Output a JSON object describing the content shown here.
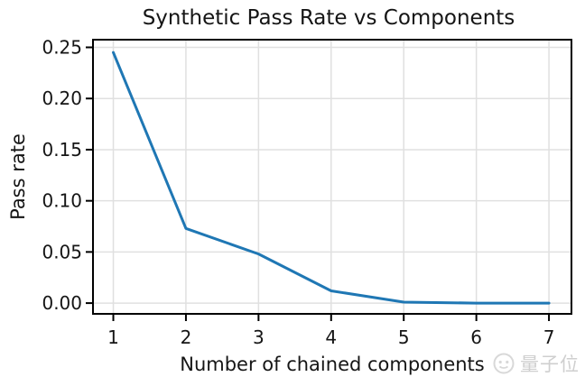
{
  "chart_data": {
    "type": "line",
    "title": "Synthetic Pass Rate vs Components",
    "xlabel": "Number of chained components",
    "ylabel": "Pass rate",
    "x": [
      1,
      2,
      3,
      4,
      5,
      6,
      7
    ],
    "series": [
      {
        "name": "pass_rate",
        "values": [
          0.245,
          0.073,
          0.048,
          0.012,
          0.001,
          0.0,
          0.0
        ]
      }
    ],
    "xticks": [
      "1",
      "2",
      "3",
      "4",
      "5",
      "6",
      "7"
    ],
    "xtick_values": [
      1,
      2,
      3,
      4,
      5,
      6,
      7
    ],
    "ytick_labels": [
      "0.00",
      "0.05",
      "0.10",
      "0.15",
      "0.20",
      "0.25"
    ],
    "ytick_values": [
      0.0,
      0.05,
      0.1,
      0.15,
      0.2,
      0.25
    ],
    "xlim": [
      0.72,
      7.31
    ],
    "ylim": [
      -0.0105,
      0.2575
    ],
    "grid": true,
    "legend": "none",
    "line_color": "#1f77b4",
    "grid_color": "#e0e0e0",
    "spine_color": "#000000",
    "text_color": "#151515"
  },
  "watermark": {
    "text": "量子位",
    "color": "#cfcfcf"
  }
}
